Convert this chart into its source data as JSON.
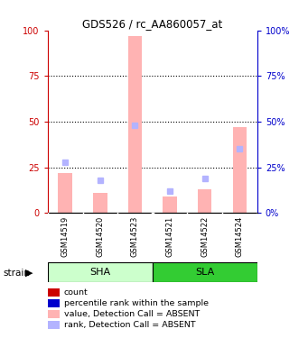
{
  "title": "GDS526 / rc_AA860057_at",
  "samples": [
    "GSM14519",
    "GSM14520",
    "GSM14523",
    "GSM14521",
    "GSM14522",
    "GSM14524"
  ],
  "pink_values": [
    22,
    11,
    97,
    9,
    13,
    47
  ],
  "blue_values": [
    28,
    18,
    48,
    12,
    19,
    35
  ],
  "ylim": [
    0,
    100
  ],
  "yticks": [
    0,
    25,
    50,
    75,
    100
  ],
  "ytick_color_left": "#cc0000",
  "ytick_color_right": "#0000cc",
  "grid_lines": [
    25,
    50,
    75
  ],
  "pink_color": "#ffb3b3",
  "blue_color": "#b3b3ff",
  "sha_color": "#ccffcc",
  "sla_color": "#33cc33",
  "sample_area_color": "#cccccc",
  "legend_items": [
    {
      "label": "count",
      "color": "#cc0000"
    },
    {
      "label": "percentile rank within the sample",
      "color": "#0000cc"
    },
    {
      "label": "value, Detection Call = ABSENT",
      "color": "#ffb3b3"
    },
    {
      "label": "rank, Detection Call = ABSENT",
      "color": "#b3b3ff"
    }
  ]
}
